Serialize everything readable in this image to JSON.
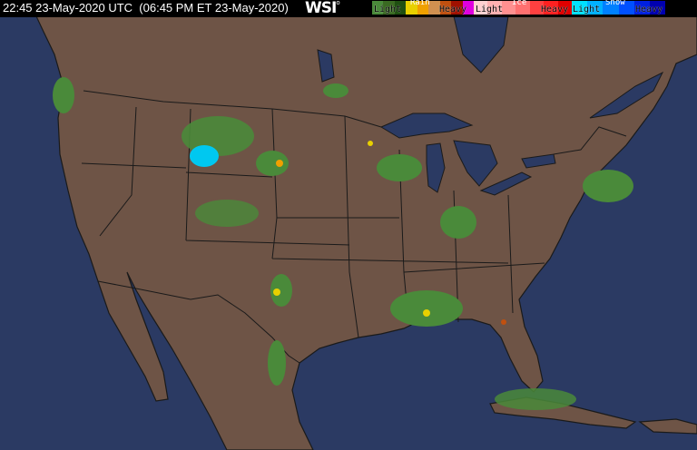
{
  "header": {
    "timestamp": "22:45 23-May-2020 UTC  (06:45 PM ET 23-May-2020)",
    "logo": "WSI"
  },
  "legend": {
    "rain": {
      "title": "Rain",
      "light": "Light",
      "heavy": "Heavy",
      "colors": [
        "#4a8a3a",
        "#3a6a22",
        "#1f4f12",
        "#e8d000",
        "#f0a000",
        "#d09050",
        "#c05010",
        "#a01000",
        "#e000e0"
      ]
    },
    "ice": {
      "title": "Ice",
      "light": "Light",
      "heavy": "Heavy",
      "colors": [
        "#ffd0d0",
        "#ffb0b0",
        "#ff9090",
        "#ff7070",
        "#ff4040",
        "#ff2020",
        "#e00000"
      ]
    },
    "snow": {
      "title": "Snow",
      "light": "Light",
      "heavy": "Heavy",
      "colors": [
        "#00e0ff",
        "#00b0ff",
        "#0080ff",
        "#0050ff",
        "#0020e0",
        "#0000b0"
      ]
    }
  },
  "map": {
    "ocean_color": "#2b3a63",
    "land_color": "#6e5446",
    "border_color": "#1a1a1a"
  }
}
